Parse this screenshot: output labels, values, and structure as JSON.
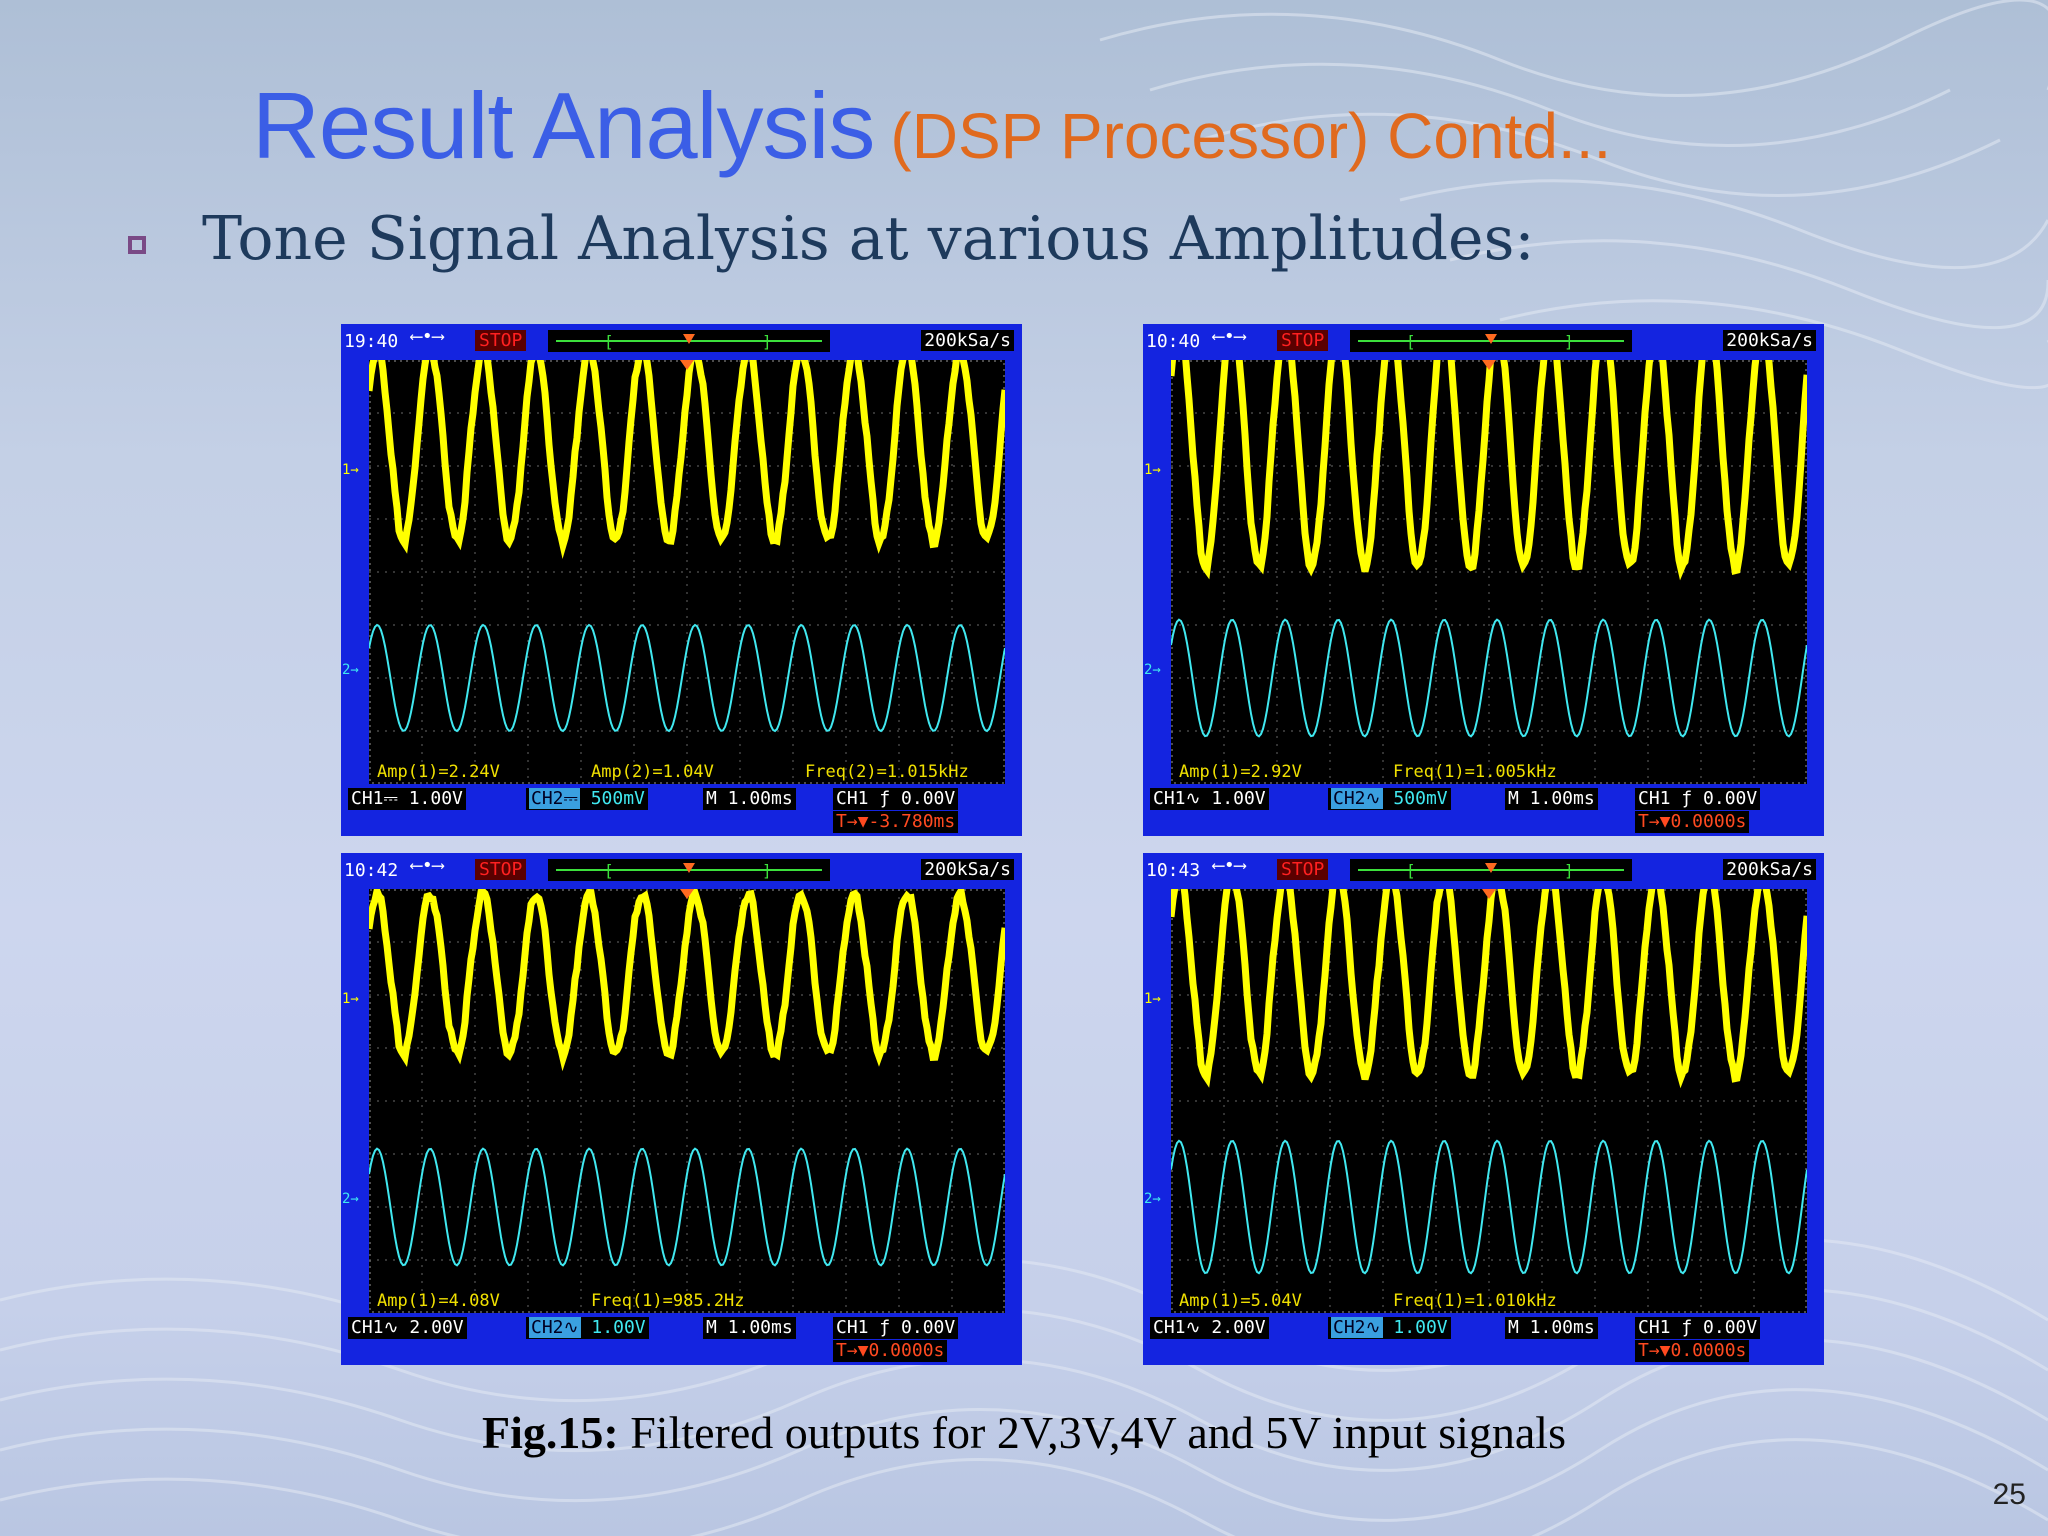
{
  "title": {
    "main": "Result Analysis",
    "sub": "(DSP Processor) Contd..."
  },
  "bullet": {
    "text": "Tone Signal Analysis at various Amplitudes:"
  },
  "colors": {
    "title": "#3b5ee6",
    "subtitle": "#e06a1e",
    "ch1_trace": "#ffff00",
    "ch2_trace": "#40e8f0",
    "scope_frame": "#1424e0"
  },
  "scopes": [
    {
      "time": "19:40",
      "stop": "STOP",
      "rate": "200kSa/s",
      "measurements": [
        "Amp(1)=2.24V",
        "Amp(2)=1.04V",
        "Freq(2)=1.015kHz"
      ],
      "ch1": "CH1⎓  1.00V",
      "ch2_tag": "CH2⎓",
      "ch2_scale": " 500mV",
      "timebase": "M 1.00ms",
      "trigger": "CH1 ƒ  0.00V",
      "trigger_pos": "T→▼-3.780ms",
      "ch1_amplitude": 1.8,
      "ch2_amplitude": 1.0,
      "cycles": 12
    },
    {
      "time": "10:40",
      "stop": "STOP",
      "rate": "200kSa/s",
      "measurements": [
        "Amp(1)=2.92V",
        "Freq(1)=1.005kHz"
      ],
      "ch1": "CH1∿  1.00V",
      "ch2_tag": "CH2∿",
      "ch2_scale": " 500mV",
      "timebase": "M 1.00ms",
      "trigger": "CH1 ƒ  0.00V",
      "trigger_pos": "T→▼0.0000s",
      "ch1_amplitude": 2.3,
      "ch2_amplitude": 1.1,
      "cycles": 12
    },
    {
      "time": "10:42",
      "stop": "STOP",
      "rate": "200kSa/s",
      "measurements": [
        "Amp(1)=4.08V",
        "Freq(1)=985.2Hz"
      ],
      "ch1": "CH1∿  2.00V",
      "ch2_tag": "CH2∿",
      "ch2_scale": " 1.00V",
      "timebase": "M 1.00ms",
      "trigger": "CH1 ƒ  0.00V",
      "trigger_pos": "T→▼0.0000s",
      "ch1_amplitude": 1.5,
      "ch2_amplitude": 1.1,
      "cycles": 12
    },
    {
      "time": "10:43",
      "stop": "STOP",
      "rate": "200kSa/s",
      "measurements": [
        "Amp(1)=5.04V",
        "Freq(1)=1.010kHz"
      ],
      "ch1": "CH1∿  2.00V",
      "ch2_tag": "CH2∿",
      "ch2_scale": " 1.00V",
      "timebase": "M 1.00ms",
      "trigger": "CH1 ƒ  0.00V",
      "trigger_pos": "T→▼0.0000s",
      "ch1_amplitude": 1.9,
      "ch2_amplitude": 1.25,
      "cycles": 12
    }
  ],
  "caption": {
    "label": "Fig.15:",
    "text": " Filtered outputs for 2V,3V,4V and 5V input signals"
  },
  "page_number": "25"
}
